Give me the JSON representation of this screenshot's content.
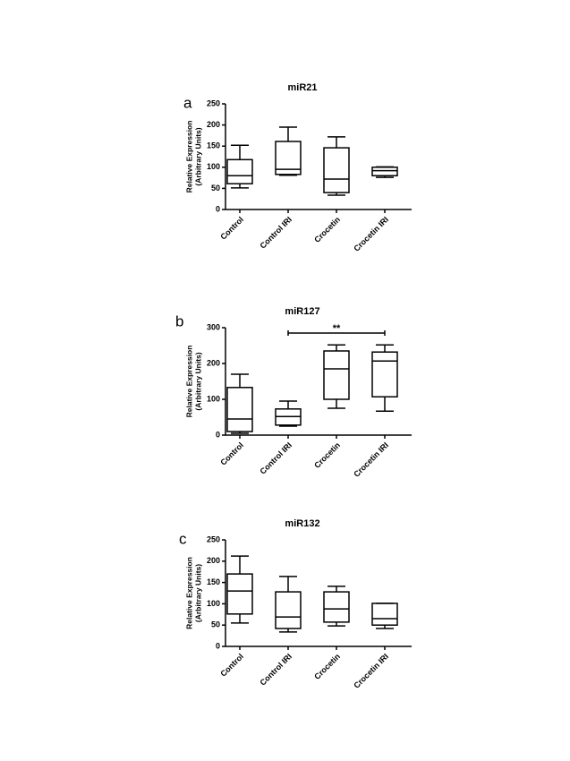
{
  "chart_data": [
    {
      "type": "box",
      "panel_label": "a",
      "title": "miR21",
      "ylabel": [
        "Relative Expression",
        "(Arbitrary Units)"
      ],
      "categories": [
        "Control",
        "Control IRI",
        "Crocetin",
        "Crocetin IRI"
      ],
      "boxes": [
        {
          "min": 51,
          "q1": 61,
          "median": 80,
          "q3": 118,
          "max": 152
        },
        {
          "min": 81,
          "q1": 83,
          "median": 95,
          "q3": 161,
          "max": 195
        },
        {
          "min": 34,
          "q1": 40,
          "median": 72,
          "q3": 146,
          "max": 172
        },
        {
          "min": 76,
          "q1": 80,
          "median": 92,
          "q3": 100,
          "max": 101
        }
      ],
      "ylim": [
        0,
        250
      ],
      "yticks": [
        0,
        50,
        100,
        150,
        200,
        250
      ]
    },
    {
      "type": "box",
      "panel_label": "b",
      "title": "miR127",
      "ylabel": [
        "Relative Expression",
        "(Arbitrary Units)"
      ],
      "categories": [
        "Control",
        "Control IRI",
        "Crocetin",
        "Crocetin IRI"
      ],
      "boxes": [
        {
          "min": 5,
          "q1": 10,
          "median": 45,
          "q3": 133,
          "max": 170
        },
        {
          "min": 25,
          "q1": 28,
          "median": 52,
          "q3": 73,
          "max": 95
        },
        {
          "min": 75,
          "q1": 100,
          "median": 185,
          "q3": 235,
          "max": 252
        },
        {
          "min": 67,
          "q1": 107,
          "median": 207,
          "q3": 232,
          "max": 252
        }
      ],
      "ylim": [
        0,
        300
      ],
      "yticks": [
        0,
        100,
        200,
        300
      ],
      "annotations": [
        {
          "text": "**",
          "from": "Control IRI",
          "to": "Crocetin IRI"
        }
      ]
    },
    {
      "type": "box",
      "panel_label": "c",
      "title": "miR132",
      "ylabel": [
        "Relative Expression",
        "(Arbitrary Units)"
      ],
      "categories": [
        "Control",
        "Control IRI",
        "Crocetin",
        "Crocetin IRI"
      ],
      "boxes": [
        {
          "min": 55,
          "q1": 76,
          "median": 130,
          "q3": 170,
          "max": 212
        },
        {
          "min": 34,
          "q1": 42,
          "median": 69,
          "q3": 128,
          "max": 164
        },
        {
          "min": 48,
          "q1": 57,
          "median": 88,
          "q3": 128,
          "max": 141
        },
        {
          "min": 42,
          "q1": 50,
          "median": 65,
          "q3": 101,
          "max": 101
        }
      ],
      "ylim": [
        0,
        250
      ],
      "yticks": [
        0,
        50,
        100,
        150,
        200,
        250
      ]
    }
  ]
}
